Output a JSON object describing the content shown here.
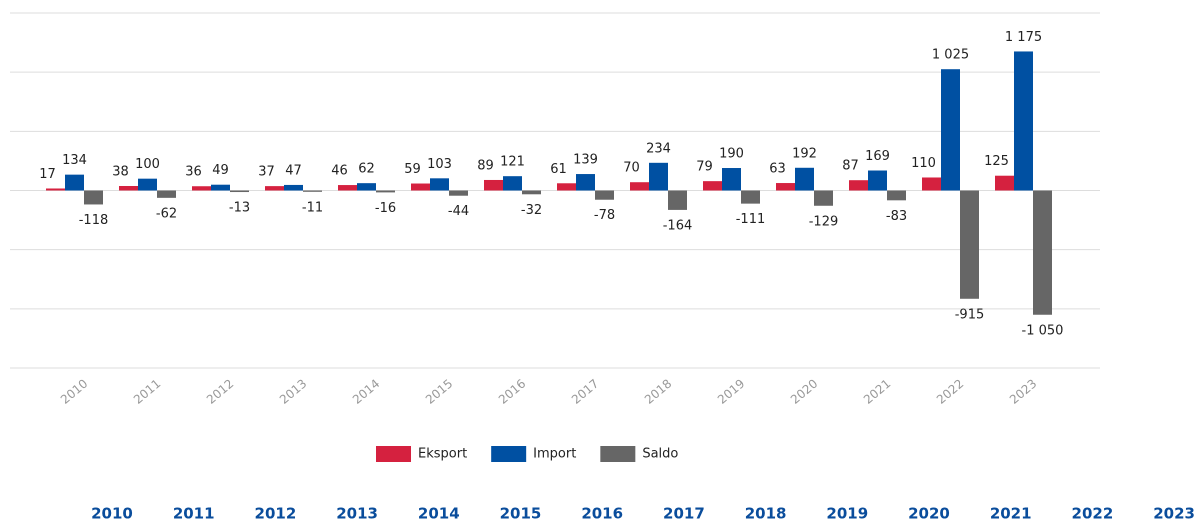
{
  "chart_data": {
    "type": "bar",
    "categories": [
      "2010",
      "2011",
      "2012",
      "2013",
      "2014",
      "2015",
      "2016",
      "2017",
      "2018",
      "2019",
      "2020",
      "2021",
      "2022",
      "2023"
    ],
    "series": [
      {
        "name": "Eksport",
        "color": "#d5213f",
        "values": [
          17,
          38,
          36,
          37,
          46,
          59,
          89,
          61,
          70,
          79,
          63,
          87,
          110,
          125
        ]
      },
      {
        "name": "Import",
        "color": "#0050a2",
        "values": [
          134,
          100,
          49,
          47,
          62,
          103,
          121,
          139,
          234,
          190,
          192,
          169,
          1025,
          1175
        ],
        "value_labels": [
          "134",
          "100",
          "49",
          "47",
          "62",
          "103",
          "121",
          "139",
          "234",
          "190",
          "192",
          "169",
          "1 025",
          "1 175"
        ]
      },
      {
        "name": "Saldo",
        "color": "#666666",
        "values": [
          -118,
          -62,
          -13,
          -11,
          -16,
          -44,
          -32,
          -78,
          -164,
          -111,
          -129,
          -83,
          -915,
          -1050
        ],
        "value_labels": [
          "-118",
          "-62",
          "-13",
          "-11",
          "-16",
          "-44",
          "-32",
          "-78",
          "-164",
          "-111",
          "-129",
          "-83",
          "-915",
          "-1 050"
        ]
      }
    ],
    "ylim": [
      -1500,
      1500
    ],
    "yticks": [
      -1500,
      -1000,
      -500,
      0,
      500,
      1000,
      1500
    ],
    "grid": true,
    "legend": "bottom"
  },
  "year_selector": [
    "2010",
    "2011",
    "2012",
    "2013",
    "2014",
    "2015",
    "2016",
    "2017",
    "2018",
    "2019",
    "2020",
    "2021",
    "2022",
    "2023"
  ]
}
